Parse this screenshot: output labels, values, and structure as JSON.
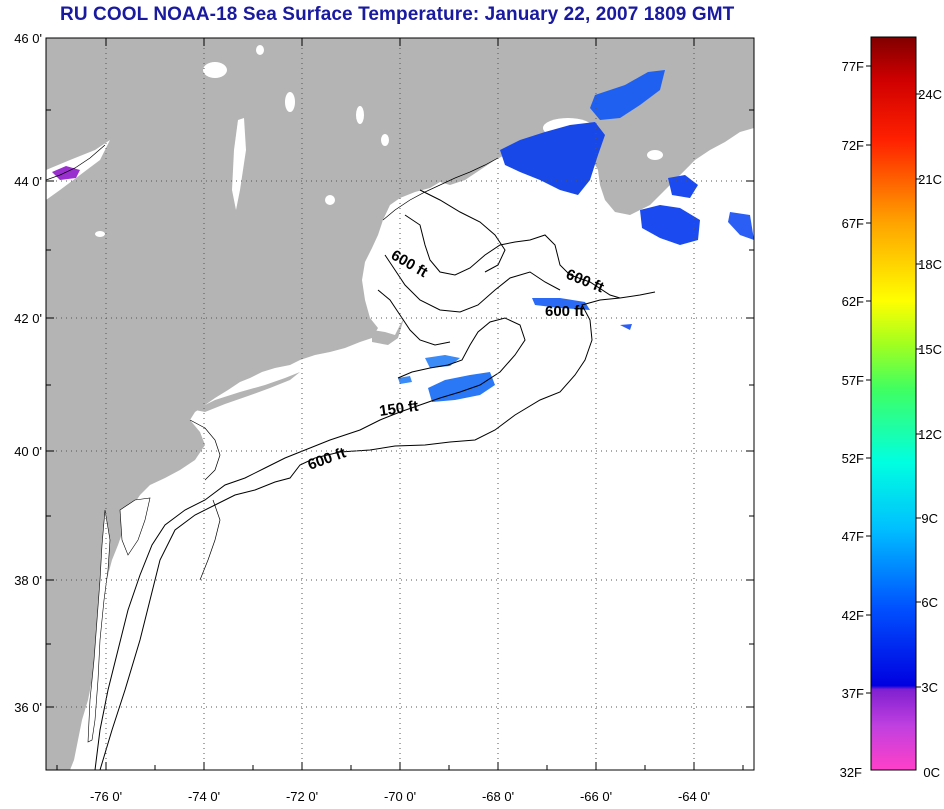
{
  "title": "RU COOL  NOAA-18  Sea Surface Temperature:  January 22, 2007 1809 GMT",
  "map": {
    "lat_labels": [
      "46 0'",
      "44 0'",
      "42 0'",
      "40 0'",
      "38 0'",
      "36 0'"
    ],
    "lon_labels": [
      "-76 0'",
      "-74 0'",
      "-72 0'",
      "-70 0'",
      "-68 0'",
      "-66 0'",
      "-64 0'"
    ],
    "contour_labels": [
      "600 ft",
      "600 ft",
      "600 ft",
      "150 ft",
      "600 ft"
    ],
    "colors": {
      "land": "#b4b4b4",
      "ocean": "#ffffff",
      "grid": "#555555"
    }
  },
  "colorbar": {
    "fahrenheit_labels": [
      "77F",
      "72F",
      "67F",
      "62F",
      "57F",
      "52F",
      "47F",
      "42F",
      "37F",
      "32F"
    ],
    "celsius_labels": [
      "24C",
      "21C",
      "18C",
      "15C",
      "12C",
      "9C",
      "6C",
      "3C",
      "0C"
    ]
  }
}
